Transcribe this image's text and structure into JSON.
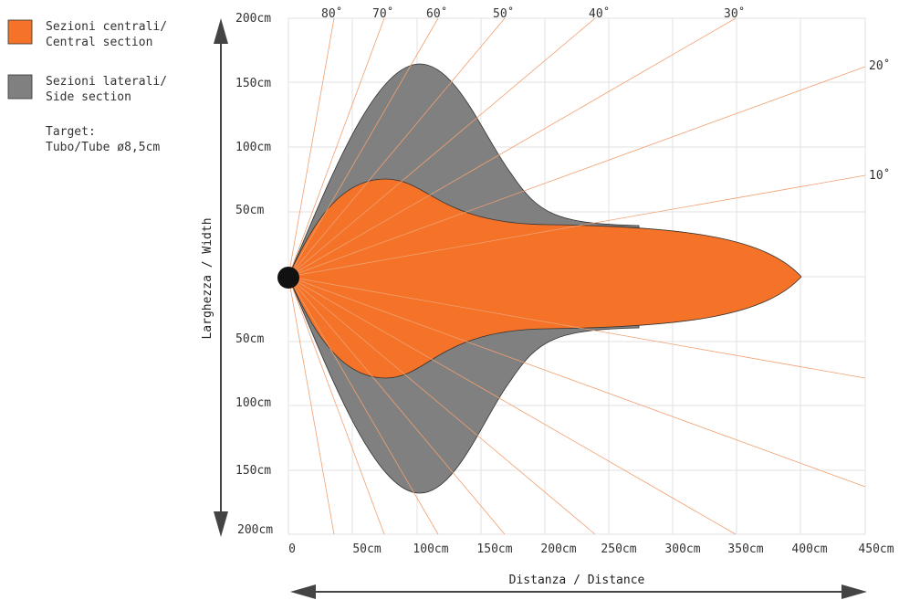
{
  "legend": {
    "central": {
      "line1": "Sezioni centrali/",
      "line2": "Central section",
      "color": "#f47328"
    },
    "side": {
      "line1": "Sezioni laterali/",
      "line2": "Side section",
      "color": "#808080"
    },
    "target": {
      "line1": "Target:",
      "line2": "Tubo/Tube ø8,5cm"
    }
  },
  "axes": {
    "x_title": "Distanza / Distance",
    "y_title": "Larghezza / Width",
    "x_ticks": [
      "0",
      "50cm",
      "100cm",
      "150cm",
      "200cm",
      "250cm",
      "300cm",
      "350cm",
      "400cm",
      "450cm"
    ],
    "y_ticks_top": [
      "200cm",
      "150cm",
      "100cm",
      "50cm"
    ],
    "y_ticks_bottom": [
      "50cm",
      "100cm",
      "150cm",
      "200cm"
    ]
  },
  "angle_labels": [
    "80˚",
    "70˚",
    "60˚",
    "50˚",
    "40˚",
    "30˚",
    "20˚",
    "10˚"
  ],
  "colors": {
    "ray": "#f0a070",
    "grid": "#e2e2e2",
    "origin": "#111111",
    "outline": "#333333"
  }
}
